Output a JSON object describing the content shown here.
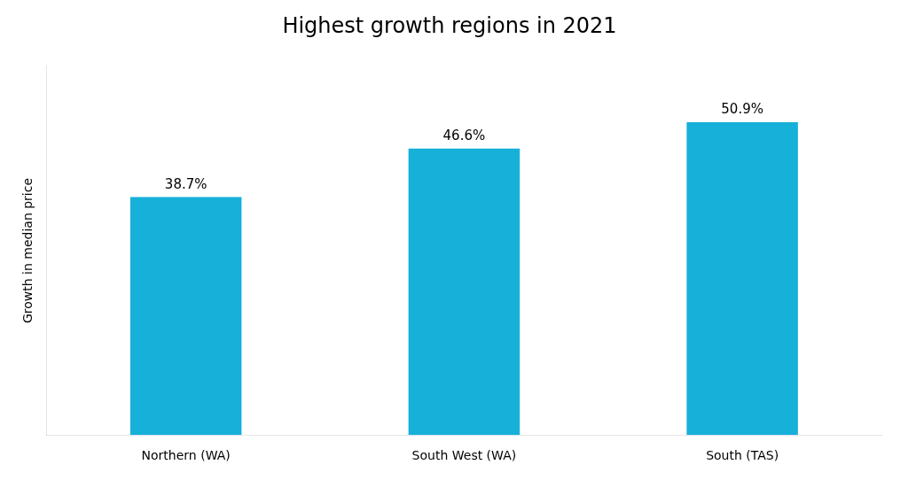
{
  "chart_data": {
    "type": "bar",
    "title": "Highest growth regions in 2021",
    "ylabel": "Growth in median price",
    "categories": [
      "Northern (WA)",
      "South West (WA)",
      "South (TAS)"
    ],
    "values": [
      38.7,
      46.6,
      50.9
    ],
    "value_labels": [
      "38.7%",
      "46.6%",
      "50.9%"
    ],
    "color": "#17B0D8",
    "ylim": [
      0,
      60
    ],
    "data_labels": true,
    "tick_labels": "x",
    "grid": false
  }
}
